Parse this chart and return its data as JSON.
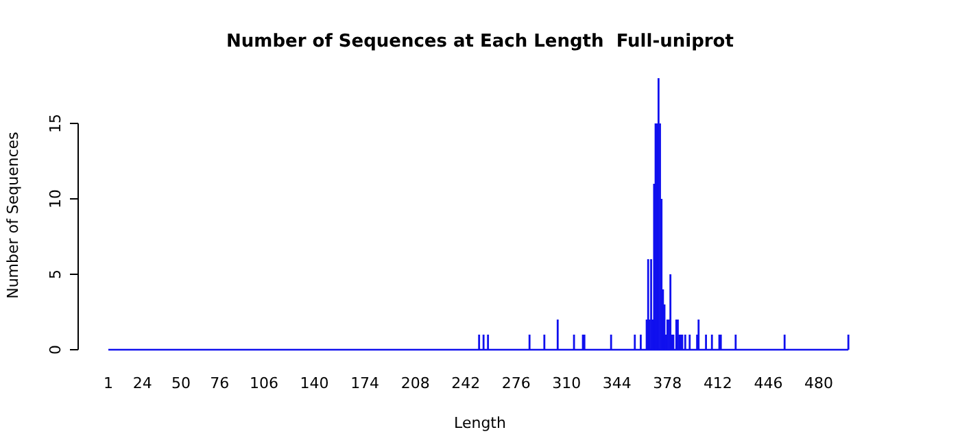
{
  "chart_data": {
    "type": "bar",
    "title": "Number of Sequences at Each Length  Full-uniprot",
    "xlabel": "Length",
    "ylabel": "Number of Sequences",
    "x": [
      251,
      254,
      257,
      285,
      295,
      304,
      315,
      321,
      322,
      340,
      356,
      360,
      364,
      365,
      366,
      367,
      368,
      369,
      370,
      371,
      372,
      373,
      374,
      375,
      376,
      377,
      378,
      379,
      380,
      381,
      382,
      384,
      385,
      386,
      387,
      388,
      390,
      393,
      398,
      399,
      404,
      408,
      413,
      414,
      424,
      457,
      500
    ],
    "values": [
      1,
      1,
      1,
      1,
      1,
      2,
      1,
      1,
      1,
      1,
      1,
      1,
      2,
      6,
      2,
      6,
      2,
      11,
      15,
      15,
      18,
      15,
      10,
      4,
      3,
      1,
      2,
      2,
      5,
      1,
      1,
      2,
      2,
      1,
      1,
      1,
      1,
      1,
      1,
      2,
      1,
      1,
      1,
      1,
      1,
      1,
      1
    ],
    "color": "#1010ee",
    "xlim": [
      1,
      500
    ],
    "xticks": [
      1,
      24,
      50,
      76,
      106,
      140,
      174,
      208,
      242,
      276,
      310,
      344,
      378,
      412,
      446,
      480
    ],
    "ylim": [
      0,
      18
    ],
    "yticks": [
      0,
      5,
      10,
      15
    ],
    "grid": false
  }
}
